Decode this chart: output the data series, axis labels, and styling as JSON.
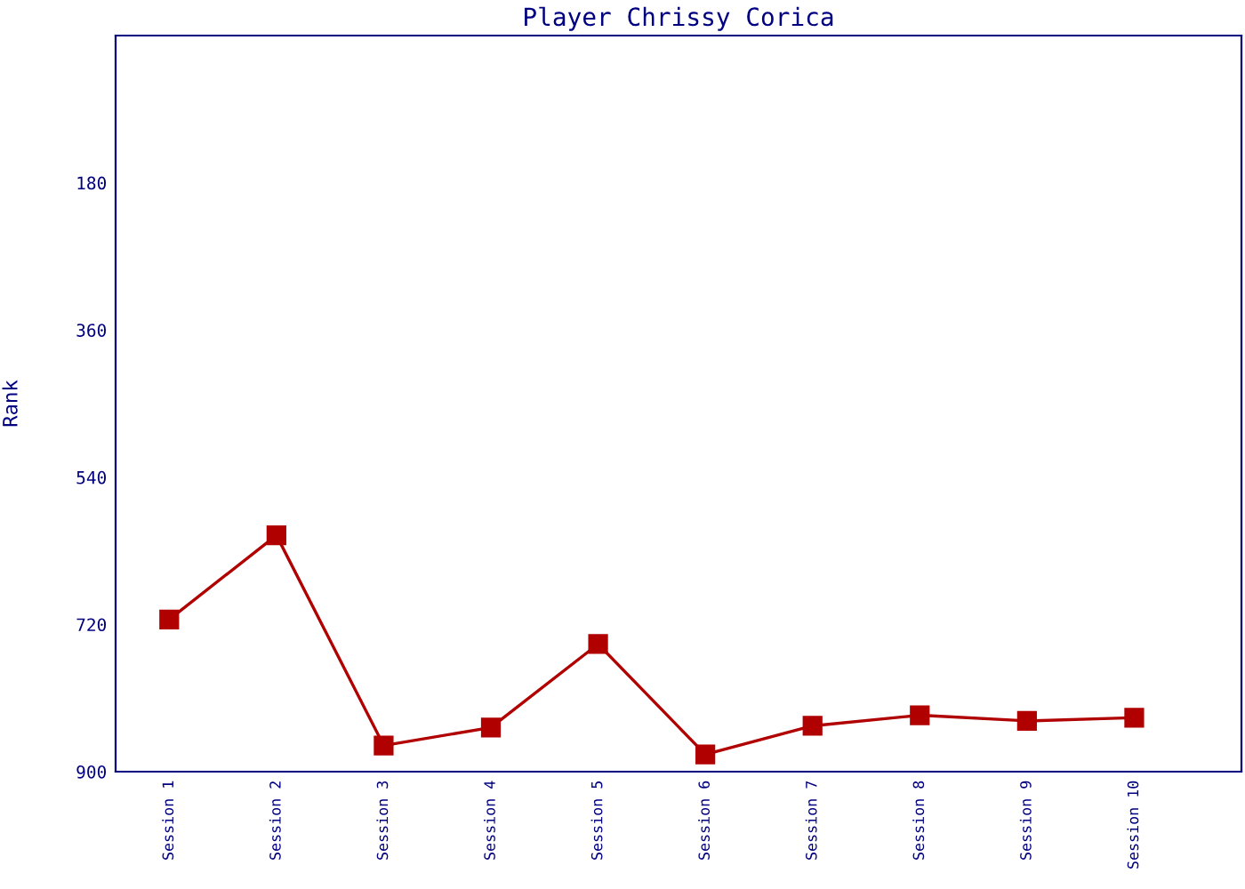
{
  "chart_data": {
    "type": "line",
    "title": "Player Chrissy Corica",
    "ylabel": "Rank",
    "categories": [
      "Session 1",
      "Session 2",
      "Session 3",
      "Session 4",
      "Session 5",
      "Session 6",
      "Session 7",
      "Session 8",
      "Session 9",
      "Session 10"
    ],
    "series": [
      {
        "color": "#b00000",
        "values": [
          714,
          611,
          868,
          846,
          744,
          879,
          844,
          831,
          838,
          834
        ]
      }
    ],
    "ylim": [
      900,
      0
    ],
    "yticks": [
      180,
      360,
      540,
      720,
      900
    ],
    "marker": "square",
    "line_style": "solid",
    "grid": false,
    "legend": false
  }
}
